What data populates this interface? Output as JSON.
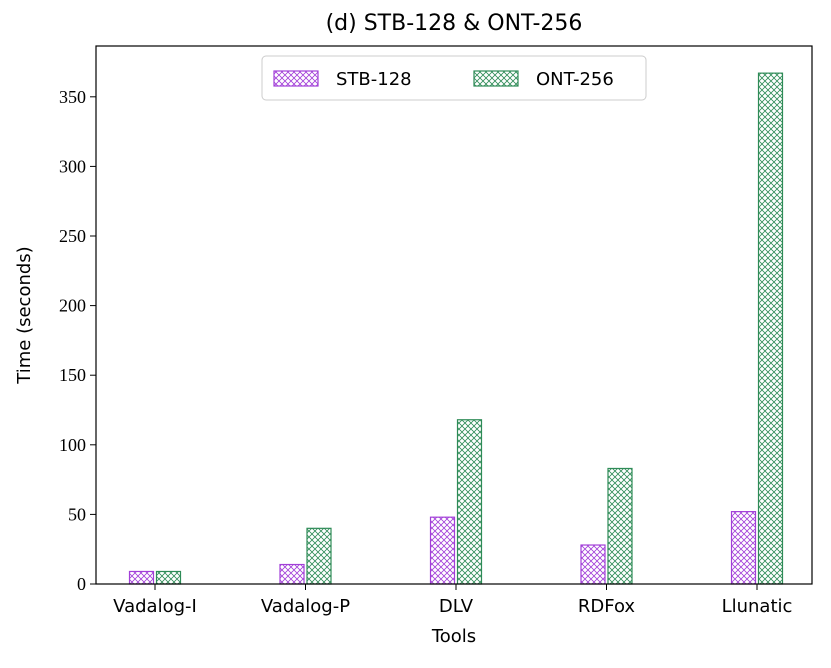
{
  "chart_data": {
    "type": "bar",
    "title": "(d) STB-128 & ONT-256",
    "x_label": "Tools",
    "y_label": "Time (seconds)",
    "categories": [
      "Vadalog-I",
      "Vadalog-P",
      "DLV",
      "RDFox",
      "Llunatic"
    ],
    "series": [
      {
        "name": "STB-128",
        "color": "#a23fd8",
        "values": [
          9,
          14,
          48,
          28,
          52
        ]
      },
      {
        "name": "ONT-256",
        "color": "#2e8b57",
        "values": [
          9,
          40,
          118,
          83,
          367
        ]
      }
    ],
    "ylim": [
      0,
      386.5
    ],
    "yticks": [
      0,
      50,
      100,
      150,
      200,
      250,
      300,
      350
    ],
    "hatch": "crosshatch",
    "legend": "upper center"
  }
}
